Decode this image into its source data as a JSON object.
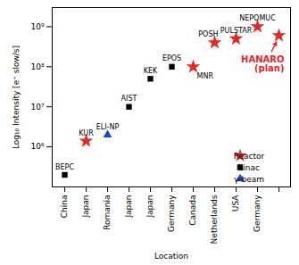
{
  "chart_data": {
    "type": "scatter",
    "xlabel": "Location",
    "ylabel": "Log₁₀ Intensity [e⁺ slow/s]",
    "categories": [
      "China",
      "Japan",
      "Romania",
      "Japan",
      "Japan",
      "Germany",
      "Canada",
      "Netherlands",
      "USA",
      "Germany",
      null
    ],
    "point_labels": [
      "BEPC",
      "KUR",
      "ELI-NP",
      "AIST",
      "KEK",
      "EPOS",
      "MNR",
      "POSH",
      "PULSTAR",
      "NEPOMUC",
      null
    ],
    "series": [
      {
        "name": "Reactor",
        "color": "#e8251f",
        "marker": "star",
        "values": [
          null,
          1400000,
          null,
          null,
          null,
          null,
          100000000,
          400000000,
          500000000,
          1000000000,
          600000000
        ]
      },
      {
        "name": "Linac",
        "color": "#000000",
        "marker": "square",
        "values": [
          200000,
          null,
          null,
          10000000,
          50000000,
          100000000,
          null,
          null,
          null,
          null,
          null
        ]
      },
      {
        "name": "γ-beam",
        "color": "#1f3fd6",
        "marker": "triangle",
        "values": [
          null,
          null,
          2000000,
          null,
          null,
          null,
          null,
          null,
          null,
          null,
          null
        ]
      }
    ],
    "annotations": [
      {
        "text": "HANARO\n(plan)",
        "x": 10,
        "y": 600000000,
        "color": "#e8251f"
      }
    ],
    "log": "y",
    "ylim": [
      100000,
      3000000000
    ],
    "yticks": [
      {
        "value": 1000000,
        "label": "10⁶"
      },
      {
        "value": 10000000,
        "label": "10⁷"
      },
      {
        "value": 100000000,
        "label": "10⁸"
      },
      {
        "value": 1000000000,
        "label": "10⁹"
      }
    ],
    "grid": false,
    "legend": "lower right"
  }
}
